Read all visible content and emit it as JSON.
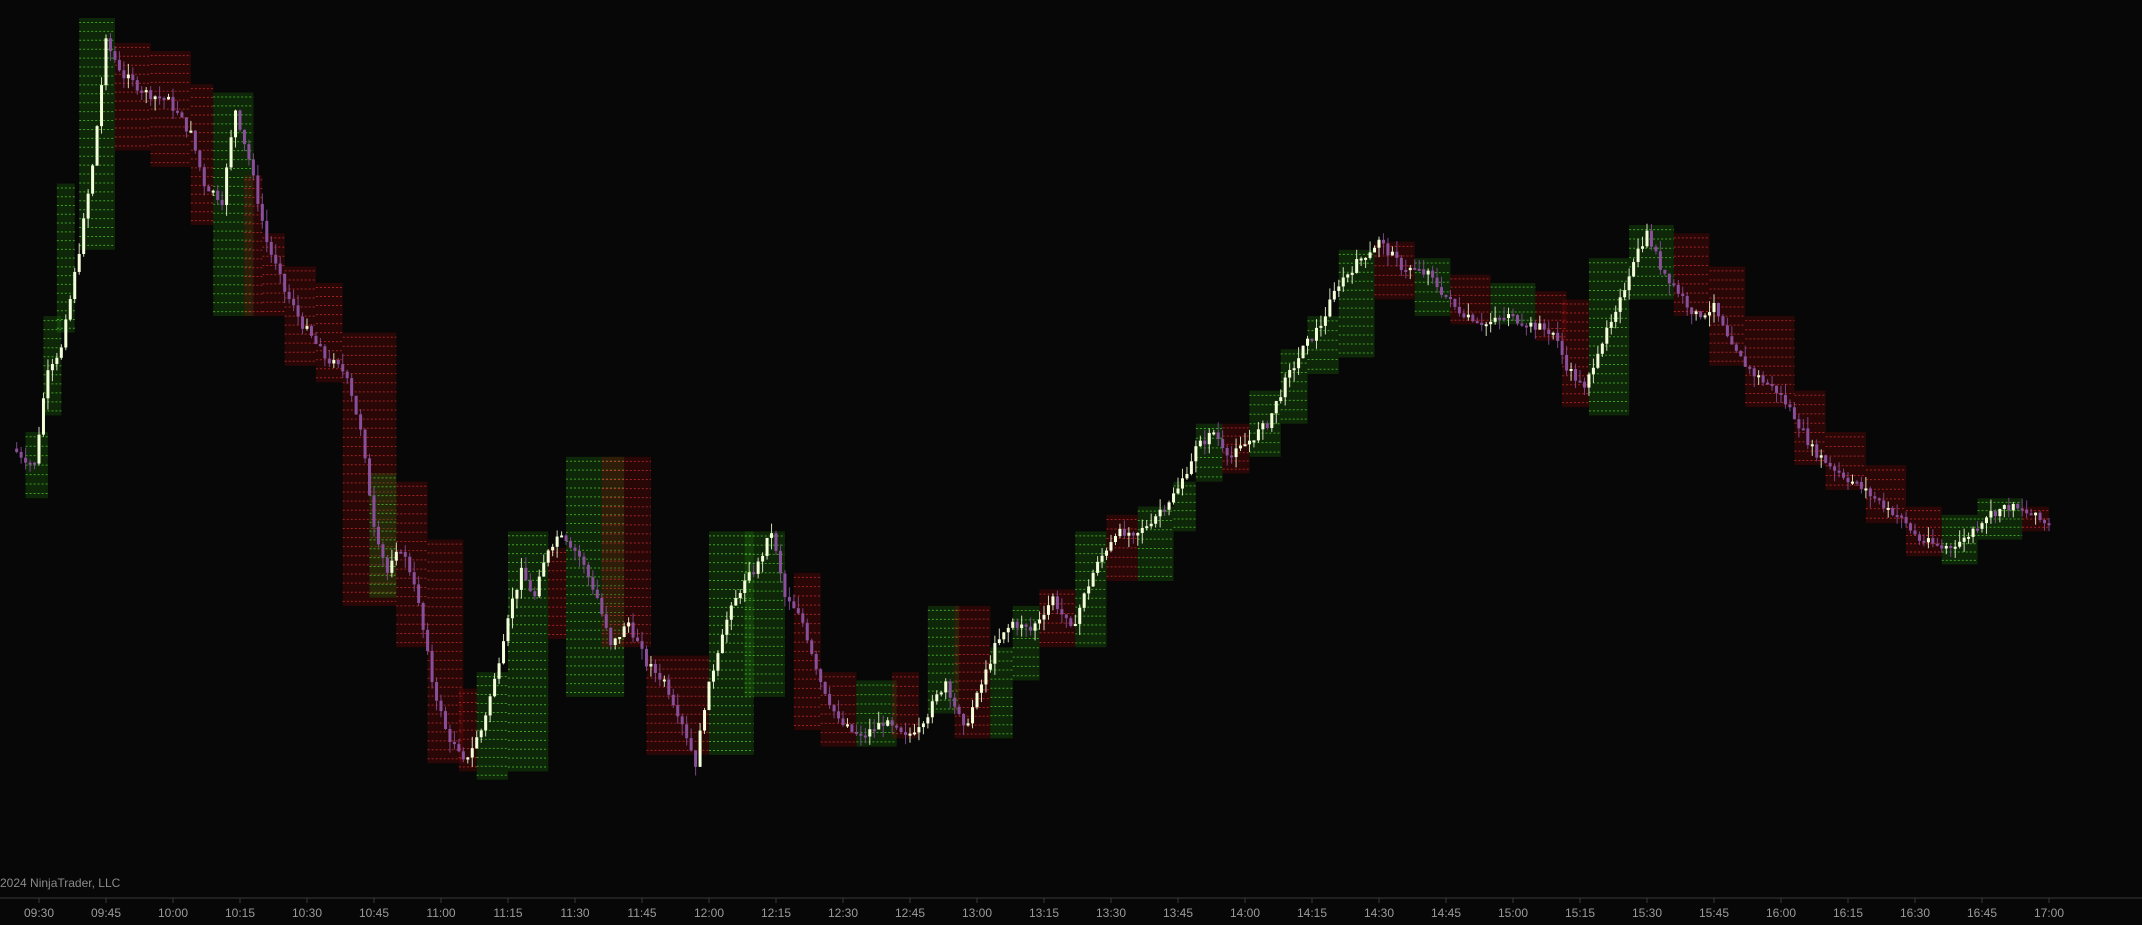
{
  "copyright": "2024 NinjaTrader, LLC",
  "colors": {
    "background": "#070707",
    "up_candle": "#f2ffd8",
    "down_candle": "#8a4f9a",
    "up_zone": "#1f7a0f",
    "down_zone": "#7a0a0a",
    "up_dotted": "#6bff3a",
    "down_dotted": "#ff3a3a",
    "axis": "#3a3a3a",
    "tick_text": "#9a9a9a"
  },
  "chart_data": {
    "type": "candlestick",
    "title": "",
    "xlabel": "",
    "ylabel": "",
    "x_ticks": [
      "09:30",
      "09:45",
      "10:00",
      "10:15",
      "10:30",
      "10:45",
      "11:00",
      "11:15",
      "11:30",
      "11:45",
      "12:00",
      "12:15",
      "12:30",
      "12:45",
      "13:00",
      "13:15",
      "13:30",
      "13:45",
      "14:00",
      "14:15",
      "14:30",
      "14:45",
      "15:00",
      "15:15",
      "15:30",
      "15:45",
      "16:00",
      "16:15",
      "16:30",
      "16:45",
      "17:00"
    ],
    "y_range": [
      0,
      100
    ],
    "grid": false,
    "price_path": [
      [
        "09:25",
        48
      ],
      [
        "09:30",
        46
      ],
      [
        "09:33",
        58
      ],
      [
        "09:36",
        60
      ],
      [
        "09:40",
        72
      ],
      [
        "09:43",
        82
      ],
      [
        "09:46",
        97
      ],
      [
        "09:50",
        93
      ],
      [
        "09:55",
        91
      ],
      [
        "10:00",
        90
      ],
      [
        "10:05",
        86
      ],
      [
        "10:08",
        80
      ],
      [
        "10:12",
        78
      ],
      [
        "10:15",
        89
      ],
      [
        "10:18",
        83
      ],
      [
        "10:22",
        73
      ],
      [
        "10:26",
        67
      ],
      [
        "10:30",
        63
      ],
      [
        "10:35",
        59
      ],
      [
        "10:40",
        57
      ],
      [
        "10:43",
        50
      ],
      [
        "10:46",
        39
      ],
      [
        "10:49",
        33
      ],
      [
        "10:52",
        36
      ],
      [
        "10:55",
        32
      ],
      [
        "10:59",
        20
      ],
      [
        "11:02",
        14
      ],
      [
        "11:06",
        10
      ],
      [
        "11:10",
        14
      ],
      [
        "11:13",
        20
      ],
      [
        "11:16",
        28
      ],
      [
        "11:19",
        33
      ],
      [
        "11:22",
        30
      ],
      [
        "11:25",
        36
      ],
      [
        "11:28",
        38
      ],
      [
        "11:32",
        35
      ],
      [
        "11:36",
        30
      ],
      [
        "11:39",
        24
      ],
      [
        "11:43",
        27
      ],
      [
        "11:47",
        22
      ],
      [
        "11:51",
        20
      ],
      [
        "11:55",
        15
      ],
      [
        "11:58",
        10
      ],
      [
        "12:00",
        17
      ],
      [
        "12:04",
        26
      ],
      [
        "12:08",
        31
      ],
      [
        "12:12",
        34
      ],
      [
        "12:15",
        38
      ],
      [
        "12:18",
        30
      ],
      [
        "12:22",
        27
      ],
      [
        "12:26",
        20
      ],
      [
        "12:30",
        15
      ],
      [
        "12:35",
        13
      ],
      [
        "12:40",
        15
      ],
      [
        "12:45",
        13
      ],
      [
        "12:50",
        16
      ],
      [
        "12:54",
        20
      ],
      [
        "12:58",
        14
      ],
      [
        "13:01",
        18
      ],
      [
        "13:05",
        24
      ],
      [
        "13:09",
        27
      ],
      [
        "13:13",
        26
      ],
      [
        "13:18",
        30
      ],
      [
        "13:22",
        26
      ],
      [
        "13:27",
        33
      ],
      [
        "13:32",
        38
      ],
      [
        "13:36",
        37
      ],
      [
        "13:41",
        40
      ],
      [
        "13:46",
        43
      ],
      [
        "13:50",
        48
      ],
      [
        "13:54",
        50
      ],
      [
        "13:58",
        47
      ],
      [
        "14:02",
        49
      ],
      [
        "14:06",
        51
      ],
      [
        "14:10",
        56
      ],
      [
        "14:14",
        60
      ],
      [
        "14:18",
        63
      ],
      [
        "14:22",
        68
      ],
      [
        "14:27",
        71
      ],
      [
        "14:31",
        73
      ],
      [
        "14:36",
        70
      ],
      [
        "14:42",
        69
      ],
      [
        "14:48",
        65
      ],
      [
        "14:55",
        63
      ],
      [
        "15:00",
        64
      ],
      [
        "15:05",
        63
      ],
      [
        "15:10",
        62
      ],
      [
        "15:13",
        58
      ],
      [
        "15:17",
        55
      ],
      [
        "15:20",
        60
      ],
      [
        "15:24",
        64
      ],
      [
        "15:28",
        71
      ],
      [
        "15:31",
        74
      ],
      [
        "15:34",
        70
      ],
      [
        "15:38",
        67
      ],
      [
        "15:42",
        64
      ],
      [
        "15:46",
        65
      ],
      [
        "15:50",
        60
      ],
      [
        "15:55",
        57
      ],
      [
        "16:00",
        55
      ],
      [
        "16:04",
        52
      ],
      [
        "16:08",
        48
      ],
      [
        "16:12",
        46
      ],
      [
        "16:17",
        44
      ],
      [
        "16:22",
        42
      ],
      [
        "16:27",
        40
      ],
      [
        "16:32",
        37
      ],
      [
        "16:37",
        36
      ],
      [
        "16:42",
        37
      ],
      [
        "16:47",
        40
      ],
      [
        "16:52",
        41
      ],
      [
        "16:57",
        40
      ],
      [
        "17:00",
        39
      ]
    ],
    "zones": [
      {
        "start": "09:27",
        "end": "09:32",
        "low": 42,
        "high": 50,
        "dir": "up"
      },
      {
        "start": "09:31",
        "end": "09:35",
        "low": 52,
        "high": 64,
        "dir": "up"
      },
      {
        "start": "09:34",
        "end": "09:38",
        "low": 62,
        "high": 80,
        "dir": "up"
      },
      {
        "start": "09:39",
        "end": "09:47",
        "low": 72,
        "high": 100,
        "dir": "up"
      },
      {
        "start": "09:47",
        "end": "09:55",
        "low": 84,
        "high": 97,
        "dir": "down"
      },
      {
        "start": "09:55",
        "end": "10:04",
        "low": 82,
        "high": 96,
        "dir": "down"
      },
      {
        "start": "10:04",
        "end": "10:09",
        "low": 75,
        "high": 92,
        "dir": "down"
      },
      {
        "start": "10:09",
        "end": "10:18",
        "low": 64,
        "high": 91,
        "dir": "up"
      },
      {
        "start": "10:16",
        "end": "10:20",
        "low": 64,
        "high": 81,
        "dir": "down"
      },
      {
        "start": "10:20",
        "end": "10:25",
        "low": 64,
        "high": 74,
        "dir": "down"
      },
      {
        "start": "10:25",
        "end": "10:32",
        "low": 58,
        "high": 70,
        "dir": "down"
      },
      {
        "start": "10:32",
        "end": "10:38",
        "low": 56,
        "high": 68,
        "dir": "down"
      },
      {
        "start": "10:38",
        "end": "10:50",
        "low": 29,
        "high": 62,
        "dir": "down"
      },
      {
        "start": "10:44",
        "end": "10:50",
        "low": 30,
        "high": 45,
        "dir": "up"
      },
      {
        "start": "10:50",
        "end": "10:57",
        "low": 24,
        "high": 44,
        "dir": "down"
      },
      {
        "start": "10:57",
        "end": "11:05",
        "low": 10,
        "high": 37,
        "dir": "down"
      },
      {
        "start": "11:04",
        "end": "11:08",
        "low": 9,
        "high": 19,
        "dir": "down"
      },
      {
        "start": "11:08",
        "end": "11:15",
        "low": 8,
        "high": 21,
        "dir": "up"
      },
      {
        "start": "11:15",
        "end": "11:24",
        "low": 9,
        "high": 38,
        "dir": "up"
      },
      {
        "start": "11:24",
        "end": "11:28",
        "low": 25,
        "high": 36,
        "dir": "down"
      },
      {
        "start": "11:28",
        "end": "11:41",
        "low": 18,
        "high": 47,
        "dir": "up"
      },
      {
        "start": "11:36",
        "end": "11:47",
        "low": 24,
        "high": 47,
        "dir": "down"
      },
      {
        "start": "11:46",
        "end": "12:00",
        "low": 11,
        "high": 23,
        "dir": "down"
      },
      {
        "start": "12:00",
        "end": "12:10",
        "low": 11,
        "high": 38,
        "dir": "up"
      },
      {
        "start": "12:08",
        "end": "12:17",
        "low": 18,
        "high": 38,
        "dir": "up"
      },
      {
        "start": "12:19",
        "end": "12:25",
        "low": 14,
        "high": 33,
        "dir": "down"
      },
      {
        "start": "12:25",
        "end": "12:33",
        "low": 12,
        "high": 21,
        "dir": "down"
      },
      {
        "start": "12:33",
        "end": "12:42",
        "low": 12,
        "high": 20,
        "dir": "up"
      },
      {
        "start": "12:41",
        "end": "12:47",
        "low": 13,
        "high": 21,
        "dir": "down"
      },
      {
        "start": "12:49",
        "end": "12:56",
        "low": 16,
        "high": 29,
        "dir": "up"
      },
      {
        "start": "12:55",
        "end": "13:03",
        "low": 13,
        "high": 29,
        "dir": "down"
      },
      {
        "start": "13:03",
        "end": "13:08",
        "low": 13,
        "high": 24,
        "dir": "up"
      },
      {
        "start": "13:08",
        "end": "13:14",
        "low": 20,
        "high": 29,
        "dir": "up"
      },
      {
        "start": "13:14",
        "end": "13:22",
        "low": 24,
        "high": 31,
        "dir": "down"
      },
      {
        "start": "13:22",
        "end": "13:29",
        "low": 24,
        "high": 38,
        "dir": "up"
      },
      {
        "start": "13:29",
        "end": "13:36",
        "low": 32,
        "high": 40,
        "dir": "down"
      },
      {
        "start": "13:36",
        "end": "13:44",
        "low": 32,
        "high": 41,
        "dir": "up"
      },
      {
        "start": "13:44",
        "end": "13:49",
        "low": 38,
        "high": 44,
        "dir": "up"
      },
      {
        "start": "13:49",
        "end": "13:55",
        "low": 44,
        "high": 51,
        "dir": "up"
      },
      {
        "start": "13:55",
        "end": "14:01",
        "low": 45,
        "high": 51,
        "dir": "down"
      },
      {
        "start": "14:01",
        "end": "14:08",
        "low": 47,
        "high": 55,
        "dir": "up"
      },
      {
        "start": "14:08",
        "end": "14:14",
        "low": 51,
        "high": 60,
        "dir": "up"
      },
      {
        "start": "14:14",
        "end": "14:21",
        "low": 57,
        "high": 64,
        "dir": "up"
      },
      {
        "start": "14:21",
        "end": "14:29",
        "low": 59,
        "high": 72,
        "dir": "up"
      },
      {
        "start": "14:29",
        "end": "14:38",
        "low": 66,
        "high": 73,
        "dir": "down"
      },
      {
        "start": "14:38",
        "end": "14:46",
        "low": 64,
        "high": 71,
        "dir": "up"
      },
      {
        "start": "14:46",
        "end": "14:55",
        "low": 63,
        "high": 69,
        "dir": "down"
      },
      {
        "start": "14:55",
        "end": "15:05",
        "low": 63,
        "high": 68,
        "dir": "up"
      },
      {
        "start": "15:05",
        "end": "15:12",
        "low": 61,
        "high": 67,
        "dir": "down"
      },
      {
        "start": "15:11",
        "end": "15:17",
        "low": 53,
        "high": 66,
        "dir": "down"
      },
      {
        "start": "15:17",
        "end": "15:26",
        "low": 52,
        "high": 71,
        "dir": "up"
      },
      {
        "start": "15:26",
        "end": "15:36",
        "low": 66,
        "high": 75,
        "dir": "up"
      },
      {
        "start": "15:36",
        "end": "15:44",
        "low": 64,
        "high": 74,
        "dir": "down"
      },
      {
        "start": "15:44",
        "end": "15:52",
        "low": 58,
        "high": 70,
        "dir": "down"
      },
      {
        "start": "15:52",
        "end": "16:03",
        "low": 53,
        "high": 64,
        "dir": "down"
      },
      {
        "start": "16:03",
        "end": "16:10",
        "low": 46,
        "high": 55,
        "dir": "down"
      },
      {
        "start": "16:10",
        "end": "16:19",
        "low": 43,
        "high": 50,
        "dir": "down"
      },
      {
        "start": "16:19",
        "end": "16:28",
        "low": 39,
        "high": 46,
        "dir": "down"
      },
      {
        "start": "16:28",
        "end": "16:36",
        "low": 35,
        "high": 41,
        "dir": "down"
      },
      {
        "start": "16:36",
        "end": "16:44",
        "low": 34,
        "high": 40,
        "dir": "up"
      },
      {
        "start": "16:44",
        "end": "16:54",
        "low": 37,
        "high": 42,
        "dir": "up"
      },
      {
        "start": "16:54",
        "end": "17:00",
        "low": 38,
        "high": 41,
        "dir": "down"
      }
    ]
  }
}
